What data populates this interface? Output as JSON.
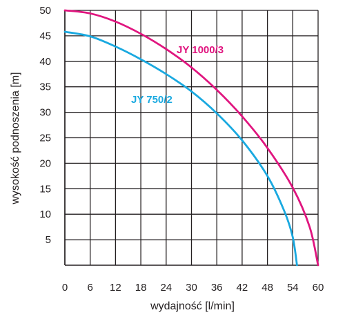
{
  "chart_data": {
    "type": "line",
    "xlabel": "wydajność [l/min]",
    "ylabel": "wysokość podnoszenia [m]",
    "xlim": [
      0,
      60
    ],
    "ylim": [
      0,
      50
    ],
    "x_ticks": [
      0,
      6,
      12,
      18,
      24,
      30,
      36,
      42,
      48,
      54,
      60
    ],
    "y_ticks": [
      5,
      10,
      15,
      20,
      25,
      30,
      35,
      40,
      45,
      50
    ],
    "grid": true,
    "series": [
      {
        "name": "JY 1000/3",
        "color": "#e0157f",
        "points": [
          [
            0,
            50
          ],
          [
            6,
            49.4
          ],
          [
            12,
            47.8
          ],
          [
            18,
            45.4
          ],
          [
            24,
            42.4
          ],
          [
            30,
            38.8
          ],
          [
            36,
            34.4
          ],
          [
            42,
            29.2
          ],
          [
            48,
            23.0
          ],
          [
            54,
            15.2
          ],
          [
            58,
            7.5
          ],
          [
            60,
            0
          ]
        ]
      },
      {
        "name": "JY 750/2",
        "color": "#1aa9e0",
        "points": [
          [
            0,
            45.8
          ],
          [
            6,
            44.9
          ],
          [
            12,
            42.9
          ],
          [
            18,
            40.4
          ],
          [
            24,
            37.5
          ],
          [
            30,
            34.1
          ],
          [
            36,
            29.8
          ],
          [
            42,
            24.5
          ],
          [
            48,
            17.5
          ],
          [
            52,
            10.6
          ],
          [
            54,
            5.5
          ],
          [
            55,
            0
          ]
        ]
      }
    ]
  }
}
